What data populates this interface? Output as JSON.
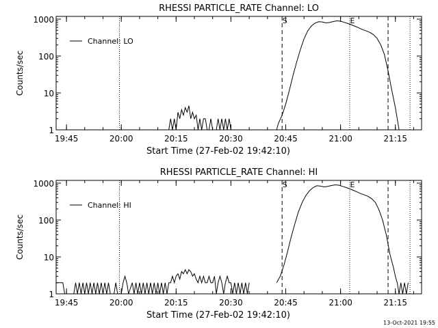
{
  "footer": {
    "timestamp": "13-Oct-2021 19:55"
  },
  "chart_data": [
    {
      "type": "line",
      "title": "RHESSI PARTICLE_RATE Channel: LO",
      "xlabel": "Start Time (27-Feb-02 19:42:10)",
      "ylabel": "Counts/sec",
      "yscale": "log",
      "xlim": [
        "19:42:10",
        "21:22:10"
      ],
      "ylim": [
        1,
        1000
      ],
      "x_ticks": [
        "19:45",
        "20:00",
        "20:15",
        "20:30",
        "20:45",
        "21:00",
        "21:15"
      ],
      "y_ticks": [
        "1",
        "10",
        "100",
        "1000"
      ],
      "legend": {
        "position": "top-left",
        "entries": [
          "Channel: LO"
        ]
      },
      "markers": [
        {
          "time": "19:59:30",
          "style": "dotted",
          "label": ""
        },
        {
          "time": "20:44:00",
          "style": "dashed",
          "label": "S"
        },
        {
          "time": "21:02:30",
          "style": "dotted",
          "label": "E"
        },
        {
          "time": "21:13:00",
          "style": "dashed",
          "label": ""
        },
        {
          "time": "21:19:00",
          "style": "dotted",
          "label": ""
        }
      ],
      "series": [
        {
          "name": "Channel: LO",
          "points": [
            [
              "20:13:00",
              1
            ],
            [
              "20:13:30",
              2
            ],
            [
              "20:14:00",
              1
            ],
            [
              "20:14:30",
              2
            ],
            [
              "20:15:00",
              1
            ],
            [
              "20:15:30",
              3
            ],
            [
              "20:16:00",
              2
            ],
            [
              "20:16:30",
              3.5
            ],
            [
              "20:17:00",
              2.5
            ],
            [
              "20:17:30",
              4
            ],
            [
              "20:18:00",
              3
            ],
            [
              "20:18:30",
              4.5
            ],
            [
              "20:19:00",
              2
            ],
            [
              "20:19:30",
              3
            ],
            [
              "20:20:00",
              2
            ],
            [
              "20:20:30",
              2.5
            ],
            [
              "20:21:00",
              1
            ],
            [
              "20:21:30",
              2
            ],
            [
              "20:22:00",
              1
            ],
            [
              "20:22:30",
              2
            ],
            [
              "20:23:00",
              2
            ],
            [
              "20:23:30",
              1
            ],
            [
              "20:24:00",
              1
            ],
            [
              "20:24:30",
              2
            ],
            [
              "20:25:00",
              1
            ],
            [
              "20:26:00",
              1
            ],
            [
              "20:26:30",
              2
            ],
            [
              "20:27:00",
              1
            ],
            [
              "20:27:30",
              2
            ],
            [
              "20:28:00",
              1
            ],
            [
              "20:28:30",
              2
            ],
            [
              "20:29:00",
              1
            ],
            [
              "20:29:30",
              2
            ],
            [
              "20:30:00",
              1
            ],
            [
              "20:42:30",
              1
            ],
            [
              "20:43:00",
              1.5
            ],
            [
              "20:44:00",
              2.5
            ],
            [
              "20:45:00",
              5
            ],
            [
              "20:46:00",
              12
            ],
            [
              "20:47:00",
              30
            ],
            [
              "20:48:00",
              70
            ],
            [
              "20:49:00",
              150
            ],
            [
              "20:50:00",
              290
            ],
            [
              "20:51:00",
              480
            ],
            [
              "20:52:00",
              650
            ],
            [
              "20:53:00",
              780
            ],
            [
              "20:54:00",
              850
            ],
            [
              "20:55:00",
              840
            ],
            [
              "20:56:00",
              790
            ],
            [
              "20:57:00",
              810
            ],
            [
              "20:58:00",
              860
            ],
            [
              "20:59:00",
              900
            ],
            [
              "21:00:00",
              880
            ],
            [
              "21:01:00",
              820
            ],
            [
              "21:02:00",
              760
            ],
            [
              "21:03:00",
              700
            ],
            [
              "21:04:00",
              640
            ],
            [
              "21:05:00",
              580
            ],
            [
              "21:06:00",
              520
            ],
            [
              "21:07:00",
              480
            ],
            [
              "21:08:00",
              440
            ],
            [
              "21:09:00",
              380
            ],
            [
              "21:10:00",
              300
            ],
            [
              "21:11:00",
              200
            ],
            [
              "21:12:00",
              110
            ],
            [
              "21:13:00",
              40
            ],
            [
              "21:14:00",
              12
            ],
            [
              "21:15:00",
              4
            ],
            [
              "21:15:30",
              2
            ],
            [
              "21:16:00",
              1
            ]
          ]
        }
      ]
    },
    {
      "type": "line",
      "title": "RHESSI PARTICLE_RATE Channel: HI",
      "xlabel": "Start Time (27-Feb-02 19:42:10)",
      "ylabel": "Counts/sec",
      "yscale": "log",
      "xlim": [
        "19:42:10",
        "21:22:10"
      ],
      "ylim": [
        1,
        1000
      ],
      "x_ticks": [
        "19:45",
        "20:00",
        "20:15",
        "20:30",
        "20:45",
        "21:00",
        "21:15"
      ],
      "y_ticks": [
        "1",
        "10",
        "100",
        "1000"
      ],
      "legend": {
        "position": "top-left",
        "entries": [
          "Channel: HI"
        ]
      },
      "markers": [
        {
          "time": "19:59:30",
          "style": "dotted",
          "label": ""
        },
        {
          "time": "20:44:00",
          "style": "dashed",
          "label": "S"
        },
        {
          "time": "21:02:30",
          "style": "dotted",
          "label": "E"
        },
        {
          "time": "21:13:00",
          "style": "dashed",
          "label": ""
        },
        {
          "time": "21:19:00",
          "style": "dotted",
          "label": ""
        }
      ],
      "series": [
        {
          "name": "Channel: HI",
          "points": [
            [
              "19:42:10",
              2
            ],
            [
              "19:44:00",
              2
            ],
            [
              "19:44:30",
              1
            ],
            [
              "19:47:00",
              1
            ],
            [
              "19:47:30",
              2
            ],
            [
              "19:48:00",
              1
            ],
            [
              "19:48:30",
              2
            ],
            [
              "19:49:00",
              1
            ],
            [
              "19:49:30",
              2
            ],
            [
              "19:50:00",
              1
            ],
            [
              "19:50:30",
              2
            ],
            [
              "19:51:00",
              1
            ],
            [
              "19:51:30",
              2
            ],
            [
              "19:52:00",
              1
            ],
            [
              "19:52:30",
              2
            ],
            [
              "19:53:00",
              1
            ],
            [
              "19:53:30",
              2
            ],
            [
              "19:54:00",
              1
            ],
            [
              "19:54:30",
              2
            ],
            [
              "19:55:00",
              1
            ],
            [
              "19:55:30",
              2
            ],
            [
              "19:56:00",
              1
            ],
            [
              "19:56:30",
              2
            ],
            [
              "19:57:00",
              1
            ],
            [
              "19:58:00",
              1
            ],
            [
              "19:58:30",
              2
            ],
            [
              "19:59:00",
              1
            ],
            [
              "20:00:00",
              1
            ],
            [
              "20:00:30",
              2
            ],
            [
              "20:01:00",
              3
            ],
            [
              "20:01:30",
              2
            ],
            [
              "20:02:00",
              1
            ],
            [
              "20:03:00",
              2
            ],
            [
              "20:03:30",
              1
            ],
            [
              "20:04:00",
              2
            ],
            [
              "20:04:30",
              1
            ],
            [
              "20:05:00",
              2
            ],
            [
              "20:05:30",
              1
            ],
            [
              "20:06:00",
              2
            ],
            [
              "20:06:30",
              1
            ],
            [
              "20:07:00",
              2
            ],
            [
              "20:07:30",
              1
            ],
            [
              "20:08:00",
              2
            ],
            [
              "20:08:30",
              1
            ],
            [
              "20:09:00",
              2
            ],
            [
              "20:09:30",
              1
            ],
            [
              "20:10:00",
              2
            ],
            [
              "20:10:30",
              1
            ],
            [
              "20:11:00",
              2
            ],
            [
              "20:11:30",
              1
            ],
            [
              "20:12:00",
              2
            ],
            [
              "20:12:30",
              1
            ],
            [
              "20:13:00",
              2
            ],
            [
              "20:13:30",
              2
            ],
            [
              "20:14:00",
              3
            ],
            [
              "20:14:30",
              2
            ],
            [
              "20:15:00",
              3
            ],
            [
              "20:15:30",
              3.5
            ],
            [
              "20:16:00",
              2.5
            ],
            [
              "20:16:30",
              4
            ],
            [
              "20:17:00",
              3.5
            ],
            [
              "20:17:30",
              4.5
            ],
            [
              "20:18:00",
              3.5
            ],
            [
              "20:18:30",
              4.5
            ],
            [
              "20:19:00",
              4
            ],
            [
              "20:19:30",
              3
            ],
            [
              "20:20:00",
              3.5
            ],
            [
              "20:20:30",
              2.5
            ],
            [
              "20:21:00",
              2
            ],
            [
              "20:21:30",
              3
            ],
            [
              "20:22:00",
              2
            ],
            [
              "20:22:30",
              3
            ],
            [
              "20:23:00",
              2
            ],
            [
              "20:23:30",
              2
            ],
            [
              "20:24:00",
              3
            ],
            [
              "20:24:30",
              2
            ],
            [
              "20:25:00",
              2
            ],
            [
              "20:25:30",
              3
            ],
            [
              "20:26:00",
              1
            ],
            [
              "20:26:30",
              2
            ],
            [
              "20:27:00",
              3
            ],
            [
              "20:27:30",
              2
            ],
            [
              "20:28:00",
              1
            ],
            [
              "20:28:30",
              2
            ],
            [
              "20:29:00",
              3
            ],
            [
              "20:29:30",
              2
            ],
            [
              "20:30:00",
              2
            ],
            [
              "20:30:30",
              1
            ],
            [
              "20:31:00",
              2
            ],
            [
              "20:31:30",
              1
            ],
            [
              "20:32:00",
              2
            ],
            [
              "20:32:30",
              1
            ],
            [
              "20:33:00",
              2
            ],
            [
              "20:33:30",
              1
            ],
            [
              "20:34:00",
              2
            ],
            [
              "20:34:30",
              1
            ],
            [
              "20:35:00",
              2
            ],
            [
              "20:42:30",
              2
            ],
            [
              "20:43:30",
              3
            ],
            [
              "20:44:30",
              6
            ],
            [
              "20:45:30",
              14
            ],
            [
              "20:46:30",
              35
            ],
            [
              "20:47:30",
              80
            ],
            [
              "20:48:30",
              170
            ],
            [
              "20:49:30",
              300
            ],
            [
              "20:50:30",
              460
            ],
            [
              "20:51:30",
              620
            ],
            [
              "20:52:30",
              760
            ],
            [
              "20:53:30",
              850
            ],
            [
              "20:54:30",
              830
            ],
            [
              "20:55:30",
              790
            ],
            [
              "20:56:30",
              820
            ],
            [
              "20:57:30",
              860
            ],
            [
              "20:58:30",
              900
            ],
            [
              "20:59:30",
              880
            ],
            [
              "21:00:30",
              820
            ],
            [
              "21:01:30",
              760
            ],
            [
              "21:02:30",
              700
            ],
            [
              "21:03:30",
              640
            ],
            [
              "21:04:30",
              580
            ],
            [
              "21:05:30",
              520
            ],
            [
              "21:06:30",
              480
            ],
            [
              "21:07:30",
              440
            ],
            [
              "21:08:30",
              380
            ],
            [
              "21:09:30",
              300
            ],
            [
              "21:10:30",
              190
            ],
            [
              "21:11:30",
              100
            ],
            [
              "21:12:30",
              40
            ],
            [
              "21:13:30",
              12
            ],
            [
              "21:14:30",
              5
            ],
            [
              "21:15:00",
              3
            ],
            [
              "21:15:30",
              2
            ],
            [
              "21:16:00",
              1
            ],
            [
              "21:16:30",
              2
            ],
            [
              "21:17:00",
              1
            ],
            [
              "21:17:30",
              2
            ],
            [
              "21:18:00",
              1
            ],
            [
              "21:18:30",
              2
            ]
          ]
        }
      ]
    }
  ]
}
